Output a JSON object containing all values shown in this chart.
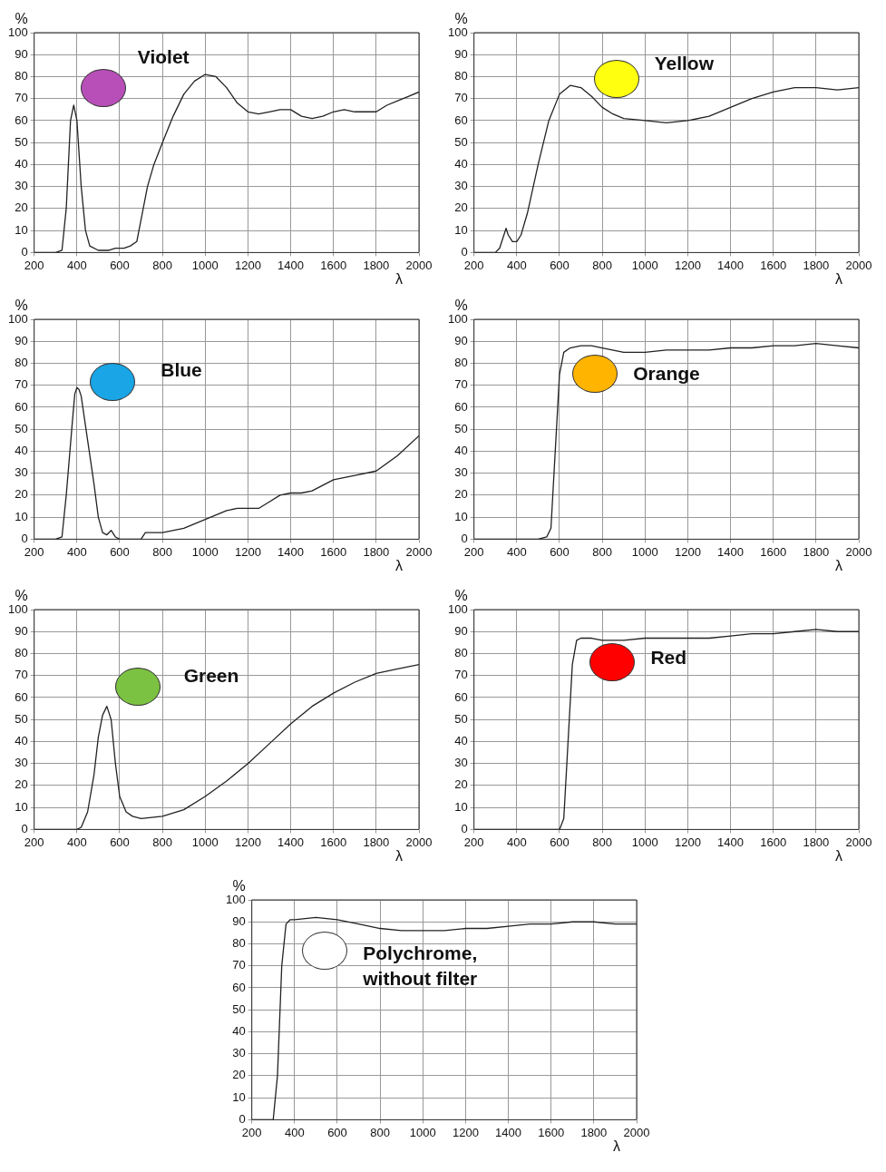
{
  "chart_data": [
    {
      "type": "line",
      "title": "Violet",
      "xlabel": "λ",
      "ylabel": "%",
      "xlim": [
        200,
        2000
      ],
      "ylim": [
        0,
        100
      ],
      "xticks": [
        200,
        400,
        600,
        800,
        1000,
        1200,
        1400,
        1600,
        1800,
        2000
      ],
      "yticks": [
        0,
        10,
        20,
        30,
        40,
        50,
        60,
        70,
        80,
        90,
        100
      ],
      "grid": true,
      "legend": false,
      "marker": "none",
      "x": [
        200,
        300,
        330,
        350,
        370,
        385,
        400,
        420,
        440,
        460,
        500,
        550,
        580,
        600,
        620,
        650,
        680,
        700,
        730,
        760,
        800,
        850,
        900,
        950,
        1000,
        1050,
        1100,
        1150,
        1200,
        1250,
        1300,
        1350,
        1400,
        1450,
        1500,
        1550,
        1600,
        1650,
        1700,
        1800,
        1850,
        1900,
        1950,
        2000
      ],
      "series": [
        {
          "color": "#222222",
          "values": [
            0,
            0,
            1,
            20,
            60,
            67,
            60,
            30,
            10,
            3,
            1,
            1,
            2,
            2,
            2,
            3,
            5,
            15,
            30,
            40,
            50,
            62,
            72,
            78,
            81,
            80,
            75,
            68,
            64,
            63,
            64,
            65,
            65,
            62,
            61,
            62,
            64,
            65,
            64,
            64,
            67,
            69,
            71,
            73
          ]
        }
      ]
    },
    {
      "type": "line",
      "title": "Yellow",
      "xlabel": "λ",
      "ylabel": "%",
      "xlim": [
        200,
        2000
      ],
      "ylim": [
        0,
        100
      ],
      "xticks": [
        200,
        400,
        600,
        800,
        1000,
        1200,
        1400,
        1600,
        1800,
        2000
      ],
      "yticks": [
        0,
        10,
        20,
        30,
        40,
        50,
        60,
        70,
        80,
        90,
        100
      ],
      "grid": true,
      "legend": false,
      "marker": "none",
      "x": [
        200,
        300,
        320,
        340,
        350,
        360,
        380,
        400,
        420,
        450,
        500,
        550,
        600,
        650,
        700,
        750,
        800,
        850,
        900,
        1000,
        1100,
        1200,
        1300,
        1400,
        1500,
        1600,
        1700,
        1800,
        1900,
        2000
      ],
      "series": [
        {
          "color": "#222222",
          "values": [
            0,
            0,
            2,
            8,
            11,
            8,
            5,
            5,
            8,
            18,
            40,
            60,
            72,
            76,
            75,
            71,
            66,
            63,
            61,
            60,
            59,
            60,
            62,
            66,
            70,
            73,
            75,
            75,
            74,
            75
          ]
        }
      ]
    },
    {
      "type": "line",
      "title": "Blue",
      "xlabel": "λ",
      "ylabel": "%",
      "xlim": [
        200,
        2000
      ],
      "ylim": [
        0,
        100
      ],
      "xticks": [
        200,
        400,
        600,
        800,
        1000,
        1200,
        1400,
        1600,
        1800,
        2000
      ],
      "yticks": [
        0,
        10,
        20,
        30,
        40,
        50,
        60,
        70,
        80,
        90,
        100
      ],
      "grid": true,
      "legend": false,
      "marker": "none",
      "x": [
        200,
        300,
        330,
        350,
        380,
        390,
        400,
        410,
        420,
        450,
        480,
        500,
        520,
        540,
        560,
        580,
        600,
        700,
        720,
        800,
        900,
        1000,
        1100,
        1150,
        1200,
        1250,
        1300,
        1350,
        1400,
        1450,
        1500,
        1600,
        1700,
        1800,
        1900,
        2000
      ],
      "series": [
        {
          "color": "#222222",
          "values": [
            0,
            0,
            1,
            20,
            55,
            66,
            69,
            68,
            65,
            45,
            25,
            10,
            3,
            2,
            4,
            1,
            0,
            0,
            3,
            3,
            5,
            9,
            13,
            14,
            14,
            14,
            17,
            20,
            21,
            21,
            22,
            27,
            29,
            31,
            38,
            47
          ]
        }
      ]
    },
    {
      "type": "line",
      "title": "Orange",
      "xlabel": "λ",
      "ylabel": "%",
      "xlim": [
        200,
        2000
      ],
      "ylim": [
        0,
        100
      ],
      "xticks": [
        200,
        400,
        600,
        800,
        1000,
        1200,
        1400,
        1600,
        1800,
        2000
      ],
      "yticks": [
        0,
        10,
        20,
        30,
        40,
        50,
        60,
        70,
        80,
        90,
        100
      ],
      "grid": true,
      "legend": false,
      "marker": "none",
      "x": [
        200,
        500,
        540,
        560,
        580,
        600,
        620,
        650,
        700,
        750,
        800,
        900,
        1000,
        1100,
        1200,
        1300,
        1400,
        1500,
        1600,
        1700,
        1800,
        1900,
        2000
      ],
      "series": [
        {
          "color": "#222222",
          "values": [
            0,
            0,
            1,
            5,
            40,
            75,
            85,
            87,
            88,
            88,
            87,
            85,
            85,
            86,
            86,
            86,
            87,
            87,
            88,
            88,
            89,
            88,
            87
          ]
        }
      ]
    },
    {
      "type": "line",
      "title": "Green",
      "xlabel": "λ",
      "ylabel": "%",
      "xlim": [
        200,
        2000
      ],
      "ylim": [
        0,
        100
      ],
      "xticks": [
        200,
        400,
        600,
        800,
        1000,
        1200,
        1400,
        1600,
        1800,
        2000
      ],
      "yticks": [
        0,
        10,
        20,
        30,
        40,
        50,
        60,
        70,
        80,
        90,
        100
      ],
      "grid": true,
      "legend": false,
      "marker": "none",
      "x": [
        200,
        400,
        420,
        450,
        480,
        500,
        520,
        540,
        560,
        580,
        600,
        630,
        660,
        700,
        800,
        900,
        1000,
        1100,
        1200,
        1300,
        1400,
        1500,
        1600,
        1700,
        1800,
        1900,
        2000
      ],
      "series": [
        {
          "color": "#222222",
          "values": [
            0,
            0,
            1,
            8,
            25,
            42,
            52,
            56,
            50,
            30,
            15,
            8,
            6,
            5,
            6,
            9,
            15,
            22,
            30,
            39,
            48,
            56,
            62,
            67,
            71,
            73,
            75
          ]
        }
      ]
    },
    {
      "type": "line",
      "title": "Red",
      "xlabel": "λ",
      "ylabel": "%",
      "xlim": [
        200,
        2000
      ],
      "ylim": [
        0,
        100
      ],
      "xticks": [
        200,
        400,
        600,
        800,
        1000,
        1200,
        1400,
        1600,
        1800,
        2000
      ],
      "yticks": [
        0,
        10,
        20,
        30,
        40,
        50,
        60,
        70,
        80,
        90,
        100
      ],
      "grid": true,
      "legend": false,
      "marker": "none",
      "x": [
        200,
        600,
        620,
        640,
        660,
        680,
        700,
        750,
        800,
        900,
        1000,
        1100,
        1200,
        1300,
        1400,
        1500,
        1600,
        1700,
        1800,
        1900,
        2000
      ],
      "series": [
        {
          "color": "#222222",
          "values": [
            0,
            0,
            5,
            40,
            75,
            86,
            87,
            87,
            86,
            86,
            87,
            87,
            87,
            87,
            88,
            89,
            89,
            90,
            91,
            90,
            90
          ]
        }
      ]
    },
    {
      "type": "line",
      "title": "Polychrome, without filter",
      "xlabel": "λ",
      "ylabel": "%",
      "xlim": [
        200,
        2000
      ],
      "ylim": [
        0,
        100
      ],
      "xticks": [
        200,
        400,
        600,
        800,
        1000,
        1200,
        1400,
        1600,
        1800,
        2000
      ],
      "yticks": [
        0,
        10,
        20,
        30,
        40,
        50,
        60,
        70,
        80,
        90,
        100
      ],
      "grid": true,
      "legend": false,
      "marker": "none",
      "x": [
        200,
        300,
        320,
        340,
        360,
        380,
        400,
        500,
        600,
        700,
        800,
        900,
        1000,
        1100,
        1200,
        1300,
        1400,
        1500,
        1600,
        1700,
        1800,
        1900,
        2000
      ],
      "series": [
        {
          "color": "#222222",
          "values": [
            0,
            0,
            20,
            70,
            89,
            91,
            91,
            92,
            91,
            89,
            87,
            86,
            86,
            86,
            87,
            87,
            88,
            89,
            89,
            90,
            90,
            89,
            89
          ]
        }
      ]
    }
  ]
}
